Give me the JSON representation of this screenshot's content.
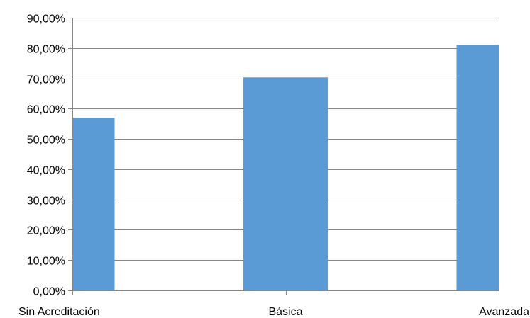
{
  "chart_data": {
    "type": "bar",
    "title": "",
    "xlabel": "",
    "ylabel": "",
    "categories": [
      "Sin Acreditación",
      "Básica",
      "Avanzada"
    ],
    "values": [
      57.0,
      70.3,
      81.0
    ],
    "ylim": [
      0,
      90
    ],
    "y_ticks": [
      0,
      10,
      20,
      30,
      40,
      50,
      60,
      70,
      80,
      90
    ],
    "y_tick_labels": [
      "0,00%",
      "10,00%",
      "20,00%",
      "30,00%",
      "40,00%",
      "50,00%",
      "60,00%",
      "70,00%",
      "80,00%",
      "90,00%"
    ],
    "grid": "horizontal",
    "legend": "none",
    "bar_color": "#5b9bd5",
    "grid_color": "#868686"
  }
}
